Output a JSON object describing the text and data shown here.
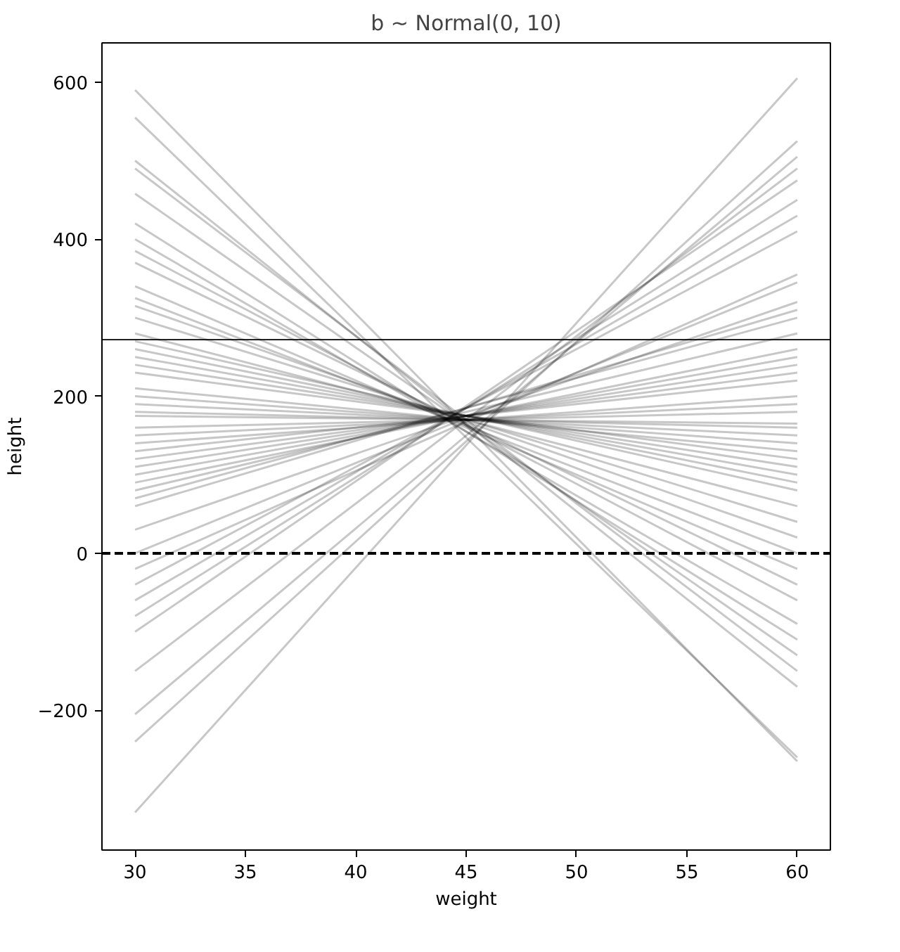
{
  "chart_data": {
    "type": "line",
    "title": "b ~ Normal(0, 10)",
    "xlabel": "weight",
    "ylabel": "height",
    "x": [
      30,
      60
    ],
    "xlim": [
      28.5,
      61.5
    ],
    "ylim": [
      -378,
      650
    ],
    "xticks": [
      30,
      35,
      40,
      45,
      50,
      55,
      60
    ],
    "yticks": [
      -200,
      0,
      200,
      400,
      600
    ],
    "grid": false,
    "series": [
      {
        "color": "#000000",
        "values": [
          590,
          -265
        ]
      },
      {
        "color": "#000000",
        "values": [
          555,
          -260
        ]
      },
      {
        "color": "#000000",
        "values": [
          500,
          -170
        ]
      },
      {
        "color": "#000000",
        "values": [
          490,
          -150
        ]
      },
      {
        "color": "#000000",
        "values": [
          458,
          -130
        ]
      },
      {
        "color": "#000000",
        "values": [
          420,
          -110
        ]
      },
      {
        "color": "#000000",
        "values": [
          400,
          -90
        ]
      },
      {
        "color": "#000000",
        "values": [
          385,
          -60
        ]
      },
      {
        "color": "#000000",
        "values": [
          370,
          -40
        ]
      },
      {
        "color": "#000000",
        "values": [
          340,
          -20
        ]
      },
      {
        "color": "#000000",
        "values": [
          325,
          0
        ]
      },
      {
        "color": "#000000",
        "values": [
          315,
          20
        ]
      },
      {
        "color": "#000000",
        "values": [
          300,
          40
        ]
      },
      {
        "color": "#000000",
        "values": [
          280,
          60
        ]
      },
      {
        "color": "#000000",
        "values": [
          270,
          80
        ]
      },
      {
        "color": "#000000",
        "values": [
          260,
          90
        ]
      },
      {
        "color": "#000000",
        "values": [
          250,
          100
        ]
      },
      {
        "color": "#000000",
        "values": [
          240,
          110
        ]
      },
      {
        "color": "#000000",
        "values": [
          230,
          120
        ]
      },
      {
        "color": "#000000",
        "values": [
          210,
          130
        ]
      },
      {
        "color": "#000000",
        "values": [
          200,
          140
        ]
      },
      {
        "color": "#000000",
        "values": [
          190,
          150
        ]
      },
      {
        "color": "#000000",
        "values": [
          180,
          160
        ]
      },
      {
        "color": "#000000",
        "values": [
          175,
          165
        ]
      },
      {
        "color": "#000000",
        "values": [
          160,
          180
        ]
      },
      {
        "color": "#000000",
        "values": [
          150,
          190
        ]
      },
      {
        "color": "#000000",
        "values": [
          140,
          200
        ]
      },
      {
        "color": "#000000",
        "values": [
          130,
          220
        ]
      },
      {
        "color": "#000000",
        "values": [
          120,
          230
        ]
      },
      {
        "color": "#000000",
        "values": [
          110,
          240
        ]
      },
      {
        "color": "#000000",
        "values": [
          100,
          250
        ]
      },
      {
        "color": "#000000",
        "values": [
          90,
          260
        ]
      },
      {
        "color": "#000000",
        "values": [
          80,
          280
        ]
      },
      {
        "color": "#000000",
        "values": [
          70,
          300
        ]
      },
      {
        "color": "#000000",
        "values": [
          60,
          310
        ]
      },
      {
        "color": "#000000",
        "values": [
          30,
          320
        ]
      },
      {
        "color": "#000000",
        "values": [
          0,
          345
        ]
      },
      {
        "color": "#000000",
        "values": [
          -20,
          355
        ]
      },
      {
        "color": "#000000",
        "values": [
          -40,
          410
        ]
      },
      {
        "color": "#000000",
        "values": [
          -60,
          430
        ]
      },
      {
        "color": "#000000",
        "values": [
          -80,
          450
        ]
      },
      {
        "color": "#000000",
        "values": [
          -100,
          475
        ]
      },
      {
        "color": "#000000",
        "values": [
          -150,
          490
        ]
      },
      {
        "color": "#000000",
        "values": [
          -205,
          505
        ]
      },
      {
        "color": "#000000",
        "values": [
          -240,
          525
        ]
      },
      {
        "color": "#000000",
        "values": [
          -330,
          605
        ]
      }
    ],
    "ref_lines": [
      {
        "axis": "y",
        "value": 0,
        "color": "#000000",
        "line_style": "dashed"
      },
      {
        "axis": "y",
        "value": 272,
        "color": "#000000",
        "line_style": "solid"
      }
    ]
  }
}
